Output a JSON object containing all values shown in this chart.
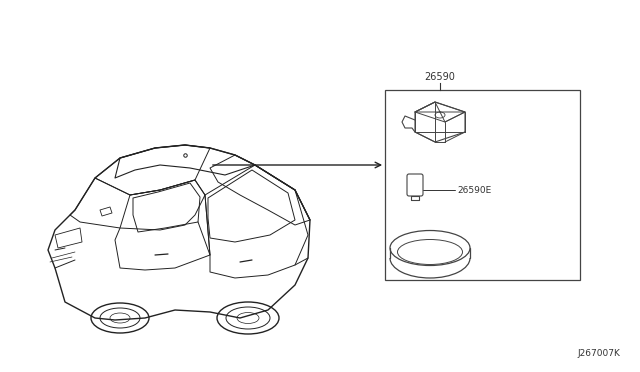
{
  "background_color": "#ffffff",
  "diagram_label": "J267007K",
  "part_number_main": "26590",
  "part_number_sub": "26590E",
  "text_color": "#333333",
  "car_color": "#222222",
  "box_color": "#444444",
  "fig_w": 6.4,
  "fig_h": 3.72,
  "dpi": 100
}
